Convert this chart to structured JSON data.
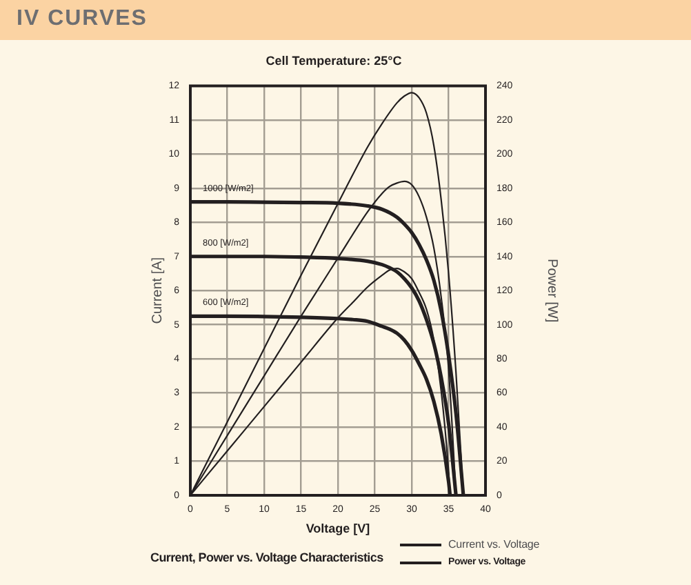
{
  "chart_data": {
    "type": "line",
    "title": "IV CURVES",
    "subtitle": "Cell Temperature: 25°C",
    "xlabel": "Voltage [V]",
    "ylabel": "Current [A]",
    "y2label": "Power [W]",
    "xlim": [
      0,
      40
    ],
    "xticks": [
      0,
      5,
      10,
      15,
      20,
      25,
      30,
      35,
      40
    ],
    "ylim": [
      0,
      12
    ],
    "yticks": [
      0,
      1,
      2,
      3,
      4,
      5,
      6,
      7,
      8,
      9,
      10,
      11,
      12
    ],
    "y2lim": [
      0,
      240
    ],
    "y2ticks": [
      0,
      20,
      40,
      60,
      80,
      100,
      120,
      140,
      160,
      180,
      200,
      220,
      240
    ],
    "grid": true,
    "series": [
      {
        "name": "1000 [W/m2]",
        "color": "#231f20",
        "x": [
          0,
          5,
          10,
          15,
          20,
          24,
          26,
          28,
          29,
          30,
          31,
          32,
          33,
          34,
          35,
          36,
          37
        ],
        "values": [
          8.6,
          8.6,
          8.59,
          8.58,
          8.56,
          8.48,
          8.38,
          8.15,
          7.95,
          7.7,
          7.35,
          6.9,
          6.3,
          5.4,
          4.1,
          2.4,
          0
        ]
      },
      {
        "name": "800 [W/m2]",
        "color": "#231f20",
        "x": [
          0,
          5,
          10,
          15,
          20,
          24,
          26,
          27,
          28,
          29,
          30,
          31,
          32,
          33,
          34,
          35,
          36
        ],
        "values": [
          7.0,
          7.0,
          7.0,
          6.98,
          6.94,
          6.86,
          6.76,
          6.67,
          6.55,
          6.35,
          6.08,
          5.7,
          5.15,
          4.45,
          3.45,
          2.1,
          0
        ]
      },
      {
        "name": "600 [W/m2]",
        "color": "#231f20",
        "x": [
          0,
          5,
          10,
          15,
          20,
          22,
          24,
          26,
          27,
          28,
          29,
          30,
          31,
          32,
          33,
          34,
          35,
          35.2
        ],
        "values": [
          5.25,
          5.25,
          5.24,
          5.22,
          5.18,
          5.15,
          5.1,
          4.95,
          4.87,
          4.75,
          4.55,
          4.25,
          3.85,
          3.4,
          2.75,
          1.8,
          0.4,
          0
        ]
      },
      {
        "color": "#231f20",
        "axis": "y2",
        "x": [
          0,
          5,
          10,
          15,
          20,
          24,
          26,
          28,
          29,
          30,
          31,
          32,
          33,
          34,
          35,
          36,
          37
        ],
        "values": [
          0,
          43,
          86,
          129,
          171,
          204,
          218,
          230,
          234,
          236,
          233,
          224,
          205,
          173,
          130,
          72,
          0
        ]
      },
      {
        "color": "#231f20",
        "axis": "y2",
        "x": [
          0,
          5,
          10,
          15,
          20,
          24,
          26,
          27,
          28,
          29,
          30,
          31,
          32,
          33,
          34,
          35,
          36
        ],
        "values": [
          0,
          35,
          70,
          105,
          139,
          166,
          177,
          181,
          183,
          184,
          182,
          175,
          163,
          145,
          116,
          74,
          0
        ]
      },
      {
        "color": "#231f20",
        "axis": "y2",
        "x": [
          0,
          5,
          10,
          15,
          20,
          22,
          24,
          26,
          27,
          28,
          29,
          30,
          31,
          32,
          33,
          34,
          35,
          35.2
        ],
        "values": [
          0,
          26,
          52,
          78,
          104,
          113,
          122,
          129,
          132,
          133,
          131,
          127,
          119,
          109,
          91,
          61,
          14,
          0
        ]
      }
    ],
    "annotations": [
      "Current, Power vs. Voltage Characteristics",
      "Current vs. Voltage",
      "Power vs. Voltage"
    ]
  }
}
